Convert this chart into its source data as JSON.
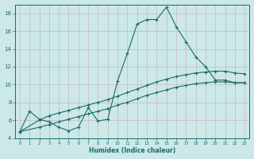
{
  "xlabel": "Humidex (Indice chaleur)",
  "ylabel": "",
  "xlim": [
    -0.5,
    23.5
  ],
  "ylim": [
    4,
    19
  ],
  "yticks": [
    4,
    6,
    8,
    10,
    12,
    14,
    16,
    18
  ],
  "xticks": [
    0,
    1,
    2,
    3,
    4,
    5,
    6,
    7,
    8,
    9,
    10,
    11,
    12,
    13,
    14,
    15,
    16,
    17,
    18,
    19,
    20,
    21,
    22,
    23
  ],
  "bg_color": "#cce8e8",
  "line_color": "#1a6b6b",
  "grid_color": "#b8d8d8",
  "line1_x": [
    0,
    1,
    2,
    3,
    4,
    5,
    6,
    7,
    8,
    9,
    10,
    11,
    12,
    13,
    14,
    15,
    16,
    17,
    18,
    19,
    20,
    21,
    22,
    23
  ],
  "line1_y": [
    4.7,
    7.0,
    6.1,
    5.8,
    5.2,
    4.8,
    5.2,
    7.4,
    5.9,
    6.1,
    10.4,
    13.5,
    16.8,
    17.3,
    17.3,
    18.7,
    16.5,
    14.8,
    13.1,
    12.0,
    10.5,
    10.5,
    10.2,
    10.2
  ],
  "line2_x": [
    0,
    2,
    3,
    4,
    5,
    6,
    7,
    8,
    9,
    10,
    11,
    12,
    13,
    14,
    15,
    16,
    17,
    18,
    19,
    20,
    21,
    22,
    23
  ],
  "line2_y": [
    4.7,
    6.0,
    6.5,
    6.8,
    7.1,
    7.4,
    7.7,
    8.0,
    8.3,
    8.7,
    9.1,
    9.5,
    9.9,
    10.3,
    10.6,
    10.9,
    11.1,
    11.3,
    11.4,
    11.5,
    11.5,
    11.3,
    11.2
  ],
  "line3_x": [
    0,
    2,
    3,
    4,
    5,
    6,
    7,
    8,
    9,
    10,
    11,
    12,
    13,
    14,
    15,
    16,
    17,
    18,
    19,
    20,
    21,
    22,
    23
  ],
  "line3_y": [
    4.7,
    5.2,
    5.5,
    5.8,
    6.1,
    6.4,
    6.7,
    7.0,
    7.3,
    7.7,
    8.0,
    8.4,
    8.8,
    9.1,
    9.4,
    9.7,
    9.9,
    10.1,
    10.2,
    10.3,
    10.3,
    10.2,
    10.2
  ]
}
